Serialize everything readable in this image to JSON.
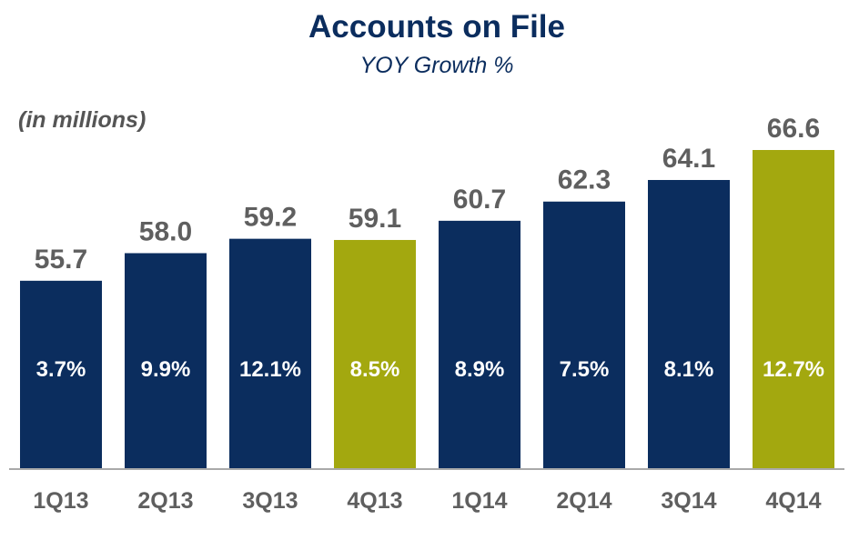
{
  "chart_data": {
    "type": "bar",
    "title": "Accounts on File",
    "subtitle": "YOY Growth %",
    "units_note": "(in millions)",
    "categories": [
      "1Q13",
      "2Q13",
      "3Q13",
      "4Q13",
      "1Q14",
      "2Q14",
      "3Q14",
      "4Q14"
    ],
    "values": [
      55.7,
      58.0,
      59.2,
      59.1,
      60.7,
      62.3,
      64.1,
      66.6
    ],
    "value_labels": [
      "55.7",
      "58.0",
      "59.2",
      "59.1",
      "60.7",
      "62.3",
      "64.1",
      "66.6"
    ],
    "growth_labels": [
      "3.7%",
      "9.9%",
      "12.1%",
      "8.5%",
      "8.9%",
      "7.5%",
      "8.1%",
      "12.7%"
    ],
    "highlight": [
      false,
      false,
      false,
      true,
      false,
      false,
      false,
      true
    ],
    "ylim": [
      40,
      66.6
    ],
    "grid": false,
    "legend": "none",
    "colors": {
      "bar": "#0b2d5e",
      "highlight": "#a3a80f",
      "title": "#0b2d5e",
      "value_label": "#5f5f5f",
      "growth_label": "#ffffff",
      "axis": "#a9a9a9",
      "category_label": "#5f5f5f"
    }
  }
}
